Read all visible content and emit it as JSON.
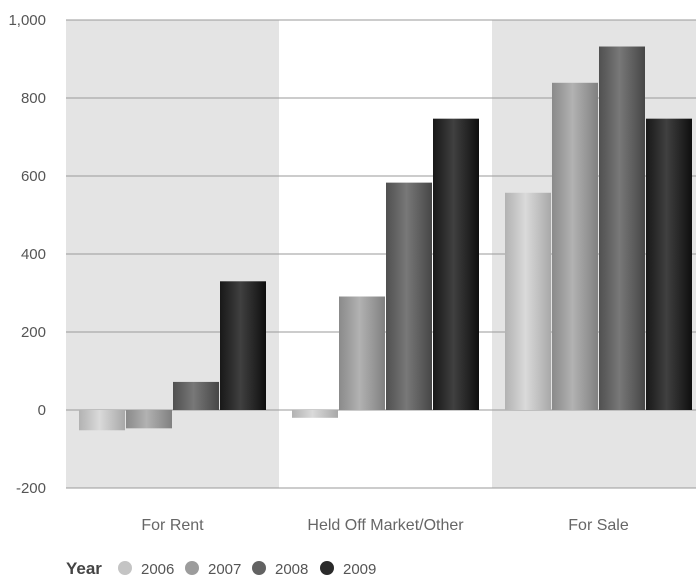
{
  "chart_data": {
    "type": "bar",
    "categories": [
      "For Rent",
      "Held Off Market/Other",
      "For Sale"
    ],
    "legend_title": "Year",
    "series": [
      {
        "name": "2006",
        "values": [
          -52,
          -20,
          557
        ],
        "color": "#c4c4c4"
      },
      {
        "name": "2007",
        "values": [
          -47,
          291,
          839
        ],
        "color": "#9c9c9c"
      },
      {
        "name": "2008",
        "values": [
          72,
          583,
          932
        ],
        "color": "#626262"
      },
      {
        "name": "2009",
        "values": [
          330,
          747,
          747
        ],
        "color": "#2a2a2a"
      }
    ],
    "ylim": [
      -200,
      1000
    ],
    "yticks": [
      "-200",
      "0",
      "200",
      "400",
      "600",
      "800",
      "1,000"
    ],
    "ytick_values": [
      -200,
      0,
      200,
      400,
      600,
      800,
      1000
    ],
    "category_band_colors": [
      "#e4e4e4",
      "#ffffff",
      "#e4e4e4"
    ],
    "grid": true,
    "legend_position": "bottom-left"
  }
}
